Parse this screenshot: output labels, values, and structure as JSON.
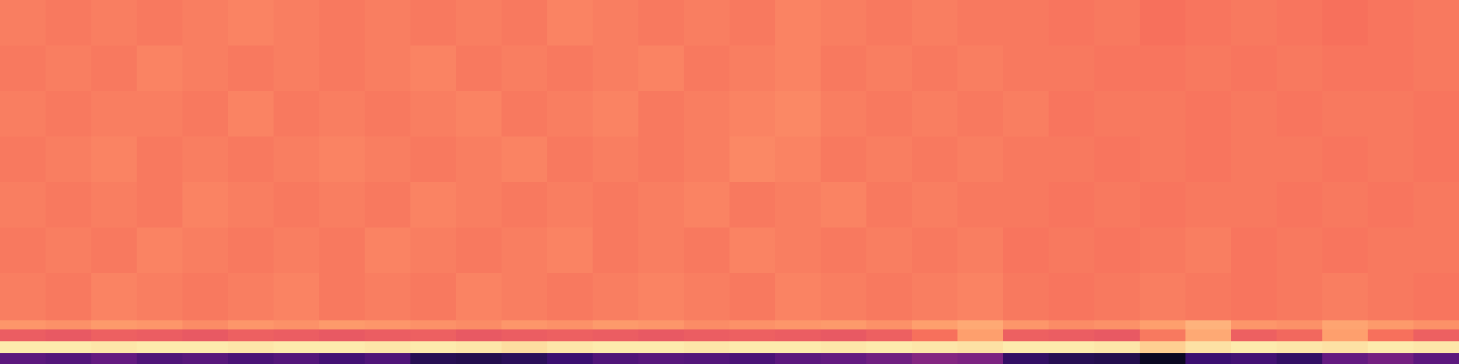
{
  "chart_data": {
    "type": "heatmap",
    "tick_labels": false,
    "zlim": [
      0,
      1
    ],
    "y_bins": [
      0,
      12,
      25,
      38,
      48,
      100,
      150,
      200,
      250,
      300,
      350,
      400
    ],
    "z": [
      [
        0.28,
        0.26,
        0.3,
        0.25,
        0.27,
        0.24,
        0.26,
        0.22,
        0.25,
        0.15,
        0.14,
        0.16,
        0.2,
        0.25,
        0.27,
        0.26,
        0.24,
        0.28,
        0.3,
        0.33,
        0.38,
        0.36,
        0.18,
        0.15,
        0.14,
        0.06,
        0.2,
        0.22,
        0.18,
        0.3,
        0.34,
        0.28
      ],
      [
        0.96,
        0.96,
        0.95,
        0.96,
        0.96,
        0.95,
        0.96,
        0.96,
        0.95,
        0.96,
        0.95,
        0.93,
        0.95,
        0.96,
        0.96,
        0.95,
        0.96,
        0.96,
        0.95,
        0.96,
        0.95,
        0.94,
        0.96,
        0.96,
        0.95,
        0.9,
        0.94,
        0.96,
        0.95,
        0.94,
        0.96,
        0.95
      ],
      [
        0.65,
        0.64,
        0.66,
        0.65,
        0.64,
        0.66,
        0.65,
        0.64,
        0.65,
        0.66,
        0.64,
        0.65,
        0.66,
        0.65,
        0.64,
        0.65,
        0.66,
        0.65,
        0.64,
        0.66,
        0.7,
        0.8,
        0.66,
        0.65,
        0.64,
        0.72,
        0.82,
        0.66,
        0.68,
        0.8,
        0.7,
        0.66
      ],
      [
        0.78,
        0.77,
        0.79,
        0.78,
        0.76,
        0.78,
        0.77,
        0.79,
        0.78,
        0.77,
        0.76,
        0.78,
        0.77,
        0.79,
        0.78,
        0.76,
        0.77,
        0.78,
        0.79,
        0.77,
        0.8,
        0.82,
        0.78,
        0.76,
        0.77,
        0.8,
        0.84,
        0.78,
        0.77,
        0.81,
        0.79,
        0.77
      ],
      [
        0.73,
        0.72,
        0.74,
        0.73,
        0.72,
        0.73,
        0.74,
        0.72,
        0.73,
        0.72,
        0.74,
        0.73,
        0.72,
        0.73,
        0.74,
        0.73,
        0.72,
        0.74,
        0.73,
        0.72,
        0.73,
        0.74,
        0.72,
        0.71,
        0.72,
        0.73,
        0.72,
        0.71,
        0.72,
        0.73,
        0.72,
        0.71
      ],
      [
        0.72,
        0.73,
        0.72,
        0.74,
        0.73,
        0.72,
        0.73,
        0.72,
        0.74,
        0.73,
        0.72,
        0.73,
        0.74,
        0.72,
        0.73,
        0.72,
        0.74,
        0.73,
        0.72,
        0.73,
        0.72,
        0.73,
        0.71,
        0.72,
        0.71,
        0.72,
        0.73,
        0.71,
        0.72,
        0.71,
        0.72,
        0.72
      ],
      [
        0.73,
        0.72,
        0.73,
        0.72,
        0.74,
        0.73,
        0.72,
        0.73,
        0.72,
        0.74,
        0.73,
        0.72,
        0.73,
        0.72,
        0.73,
        0.74,
        0.72,
        0.73,
        0.74,
        0.72,
        0.73,
        0.72,
        0.72,
        0.71,
        0.72,
        0.71,
        0.72,
        0.72,
        0.71,
        0.72,
        0.71,
        0.72
      ],
      [
        0.72,
        0.73,
        0.74,
        0.72,
        0.73,
        0.72,
        0.73,
        0.74,
        0.73,
        0.72,
        0.73,
        0.74,
        0.72,
        0.73,
        0.72,
        0.73,
        0.75,
        0.74,
        0.72,
        0.73,
        0.72,
        0.73,
        0.72,
        0.72,
        0.71,
        0.72,
        0.71,
        0.72,
        0.72,
        0.71,
        0.72,
        0.71
      ],
      [
        0.73,
        0.72,
        0.73,
        0.73,
        0.72,
        0.74,
        0.72,
        0.73,
        0.72,
        0.73,
        0.74,
        0.72,
        0.73,
        0.74,
        0.72,
        0.73,
        0.74,
        0.75,
        0.73,
        0.72,
        0.73,
        0.72,
        0.73,
        0.71,
        0.72,
        0.72,
        0.71,
        0.72,
        0.71,
        0.72,
        0.72,
        0.71
      ],
      [
        0.72,
        0.73,
        0.72,
        0.74,
        0.73,
        0.72,
        0.73,
        0.72,
        0.73,
        0.74,
        0.72,
        0.73,
        0.72,
        0.73,
        0.74,
        0.72,
        0.73,
        0.74,
        0.72,
        0.73,
        0.72,
        0.73,
        0.72,
        0.72,
        0.71,
        0.71,
        0.72,
        0.71,
        0.72,
        0.71,
        0.71,
        0.72
      ],
      [
        0.73,
        0.72,
        0.73,
        0.72,
        0.73,
        0.74,
        0.73,
        0.72,
        0.73,
        0.72,
        0.73,
        0.72,
        0.74,
        0.73,
        0.72,
        0.73,
        0.72,
        0.74,
        0.73,
        0.72,
        0.73,
        0.72,
        0.72,
        0.71,
        0.72,
        0.7,
        0.71,
        0.72,
        0.71,
        0.7,
        0.71,
        0.72
      ]
    ]
  }
}
